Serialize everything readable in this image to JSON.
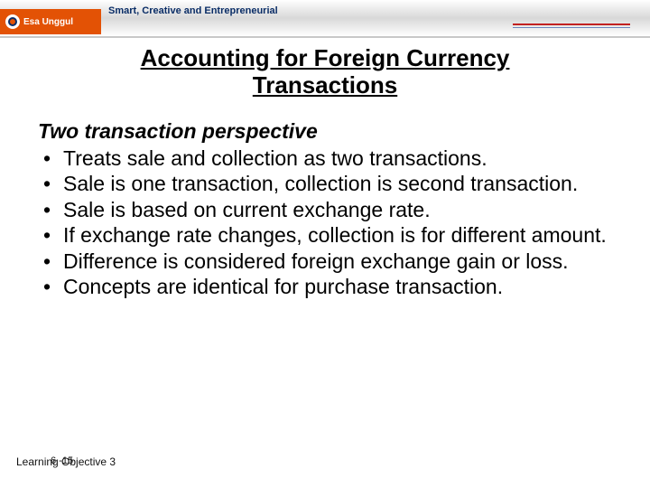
{
  "header": {
    "logo_text": "Esa Unggul",
    "tagline": "Smart, Creative and Entrepreneurial",
    "rule_red": "#c22121",
    "rule_blue": "#6b86bd",
    "orange": "#e35205",
    "navy": "#0a2d66"
  },
  "slide": {
    "title_line1": "Accounting for Foreign Currency",
    "title_line2": "Transactions",
    "subtitle": "Two transaction perspective",
    "bullets": [
      "Treats sale and collection as two transactions.",
      "Sale is one transaction, collection is second transaction.",
      "Sale is based on current exchange rate.",
      "If exchange rate changes, collection is for different amount.",
      "Difference is considered foreign exchange gain or loss.",
      "Concepts are identical for purchase transaction."
    ],
    "title_fontsize": 26,
    "body_fontsize": 23,
    "text_color": "#000000",
    "background_color": "#ffffff"
  },
  "footer": {
    "learning_label": "Learning Objective 3",
    "slide_number": "6 -15"
  }
}
